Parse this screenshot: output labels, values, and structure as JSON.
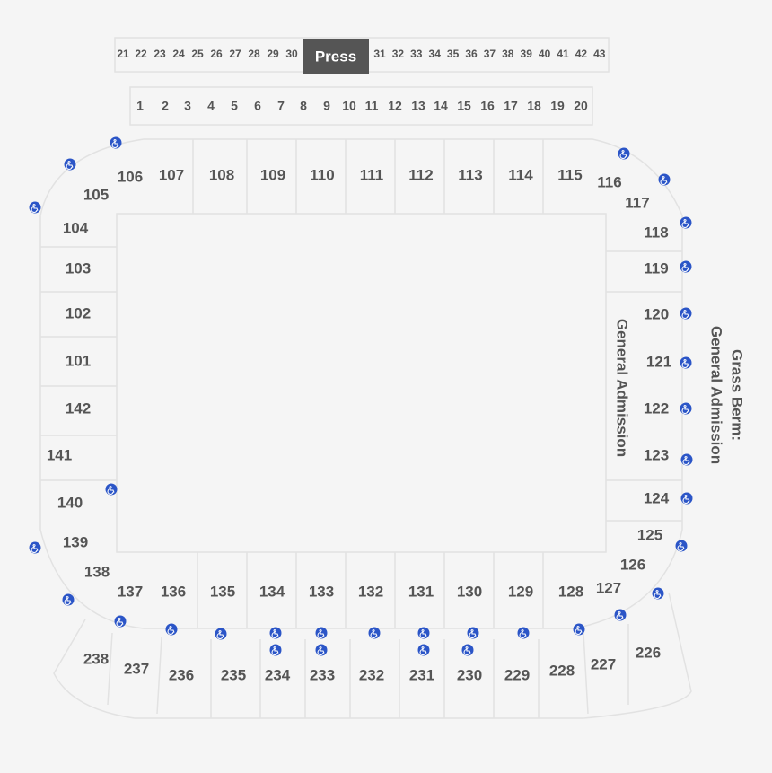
{
  "press_box": {
    "left": [
      "21",
      "22",
      "23",
      "24",
      "25",
      "26",
      "27",
      "28",
      "29",
      "30"
    ],
    "label": "Press",
    "right": [
      "31",
      "32",
      "33",
      "34",
      "35",
      "36",
      "37",
      "38",
      "39",
      "40",
      "41",
      "42",
      "43"
    ]
  },
  "suites": [
    "1",
    "2",
    "3",
    "4",
    "5",
    "6",
    "7",
    "8",
    "9",
    "10",
    "11",
    "12",
    "13",
    "14",
    "15",
    "16",
    "17",
    "18",
    "19",
    "20"
  ],
  "sections": [
    "101",
    "102",
    "103",
    "104",
    "105",
    "106",
    "107",
    "108",
    "109",
    "110",
    "111",
    "112",
    "113",
    "114",
    "115",
    "116",
    "117",
    "118",
    "119",
    "120",
    "121",
    "122",
    "123",
    "124",
    "125",
    "126",
    "127",
    "128",
    "129",
    "130",
    "131",
    "132",
    "133",
    "134",
    "135",
    "136",
    "137",
    "138",
    "139",
    "140",
    "141",
    "142",
    "226",
    "227",
    "228",
    "229",
    "230",
    "231",
    "232",
    "233",
    "234",
    "235",
    "236",
    "237",
    "238"
  ],
  "general_admission": "General Admission",
  "grass_berm": {
    "line1": "Grass Berm:",
    "line2": "General Admission"
  }
}
